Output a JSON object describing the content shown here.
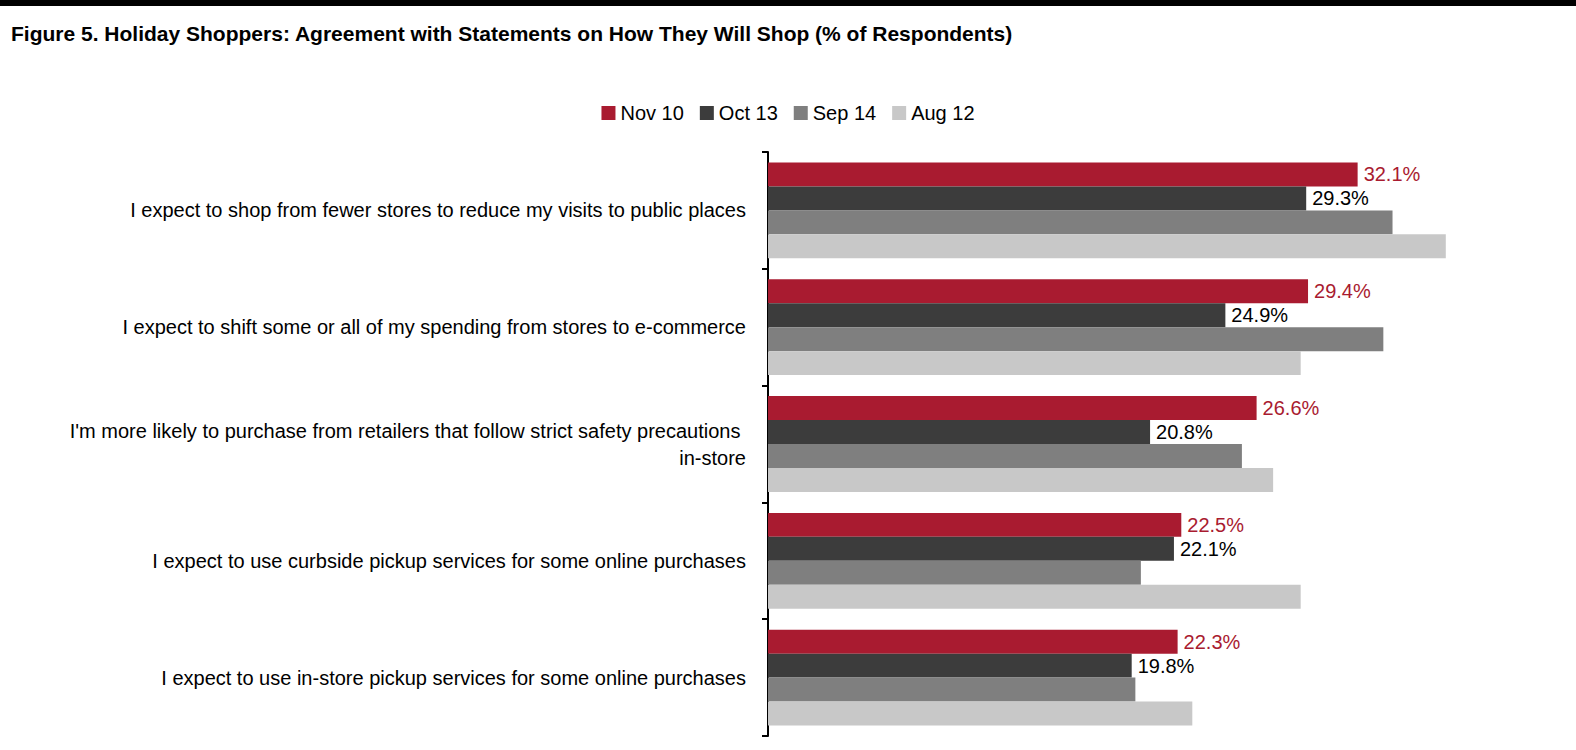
{
  "chart_data": {
    "type": "bar",
    "title": "Figure 5. Holiday Shoppers: Agreement with Statements on How They Will Shop (% of Respondents)",
    "orientation": "horizontal",
    "grid": false,
    "legend": "top",
    "tick_labels": "y",
    "xlim": [
      0,
      38
    ],
    "categories": [
      "I expect to shop from fewer stores to reduce my visits to public places",
      "I expect to shift some or all of my spending from stores to e-commerce",
      "I'm more likely to purchase from retailers that follow strict safety precautions in-store",
      "I expect to use curbside pickup services for some online purchases",
      "I expect to use in-store pickup services for some online purchases"
    ],
    "series": [
      {
        "name": "Nov 10",
        "color": "#a91b30",
        "data_labels": true,
        "values": [
          32.1,
          29.4,
          26.6,
          22.5,
          22.3
        ],
        "value_labels": [
          "32.1%",
          "29.4%",
          "26.6%",
          "22.5%",
          "22.3%"
        ]
      },
      {
        "name": "Oct 13",
        "color": "#3c3c3c",
        "data_labels": true,
        "values": [
          29.3,
          24.9,
          20.8,
          22.1,
          19.8
        ],
        "value_labels": [
          "29.3%",
          "24.9%",
          "20.8%",
          "22.1%",
          "19.8%"
        ]
      },
      {
        "name": "Sep 14",
        "color": "#7f7f7f",
        "values": [
          34.0,
          33.5,
          25.8,
          20.3,
          20.0
        ]
      },
      {
        "name": "Aug 12",
        "color": "#c8c8c8",
        "values": [
          36.9,
          29.0,
          27.5,
          29.0,
          23.1
        ]
      }
    ]
  }
}
